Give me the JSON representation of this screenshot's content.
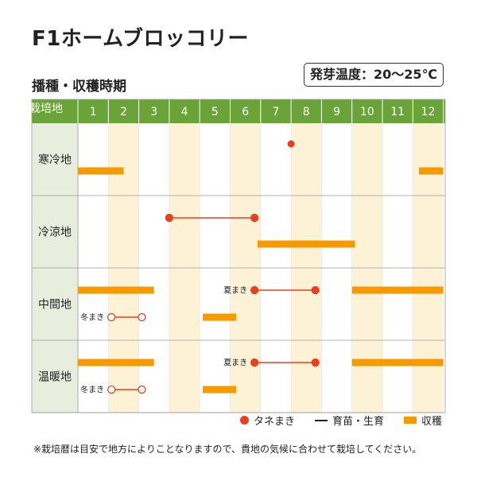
{
  "title": "F1ホームブロッコリー",
  "temperature": "発芽温度：20～25℃",
  "subtitle": "播種・収穫時期",
  "header_label": "栽培地",
  "months": [
    "1",
    "2",
    "3",
    "4",
    "5",
    "6",
    "7",
    "8",
    "9",
    "10",
    "11",
    "12"
  ],
  "colors": {
    "header": "#6aa337",
    "label_bg": "#e7eedd",
    "stripe": "#fdf1d6",
    "harvest": "#f59b00",
    "sow": "#e8401f",
    "grow_line": "#e8401f"
  },
  "regions": [
    "寒冷地",
    "冷涼地",
    "中間地",
    "温暖地"
  ],
  "row_labels": {
    "summer": "夏まき",
    "winter": "冬まき"
  },
  "chart_data": {
    "type": "table",
    "schedule": [
      {
        "region": "寒冷地",
        "sowing_dot": [
          8.0
        ],
        "harvest": [
          [
            1.0,
            2.5
          ],
          [
            12.2,
            13.0
          ]
        ]
      },
      {
        "region": "冷涼地",
        "sow_grow": [
          [
            4.0,
            6.8
          ]
        ],
        "harvest": [
          [
            6.9,
            10.1
          ]
        ]
      },
      {
        "region": "中間地",
        "summer": {
          "sow_grow": [
            [
              6.8,
              8.8
            ]
          ],
          "harvest": [
            [
              1.0,
              3.5
            ],
            [
              10.0,
              13.0
            ]
          ]
        },
        "winter": {
          "sow_grow": [
            [
              2.1,
              3.1
            ]
          ],
          "harvest": [
            [
              5.1,
              6.2
            ]
          ]
        }
      },
      {
        "region": "温暖地",
        "summer": {
          "sow_grow": [
            [
              6.8,
              8.8
            ]
          ],
          "harvest": [
            [
              1.0,
              3.5
            ],
            [
              10.0,
              13.0
            ]
          ]
        },
        "winter": {
          "sow_grow": [
            [
              2.1,
              3.1
            ]
          ],
          "harvest": [
            [
              5.1,
              6.2
            ]
          ]
        }
      }
    ]
  },
  "legend": {
    "sow": "タネまき",
    "grow": "育苗・生育",
    "harvest": "収穫"
  },
  "footnote": "※栽培暦は目安で地方によりことなりますので、貴地の気候に合わせて栽培してください。"
}
